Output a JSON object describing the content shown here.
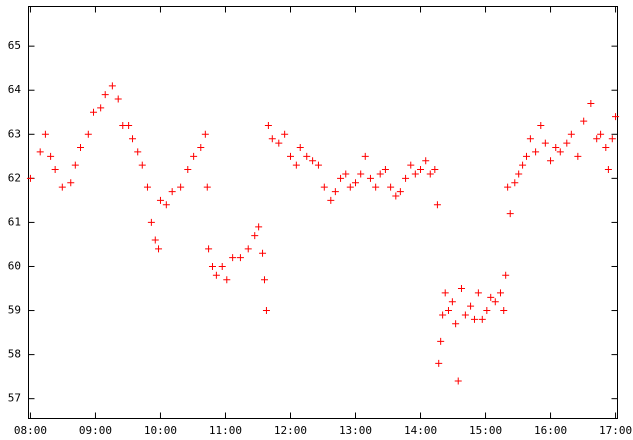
{
  "chart_data": {
    "type": "scatter",
    "color": "#ff0000",
    "x": [
      8.0,
      8.15,
      8.23,
      8.31,
      8.38,
      8.49,
      8.62,
      8.69,
      8.77,
      8.89,
      8.97,
      9.08,
      9.15,
      9.26,
      9.35,
      9.42,
      9.51,
      9.57,
      9.65,
      9.72,
      9.8,
      9.86,
      9.92,
      9.97,
      10.0,
      10.09,
      10.18,
      10.31,
      10.42,
      10.51,
      10.62,
      10.69,
      10.72,
      10.74,
      10.8,
      10.86,
      10.95,
      11.02,
      11.11,
      11.23,
      11.35,
      11.45,
      11.51,
      11.57,
      11.6,
      11.63,
      11.66,
      11.72,
      11.82,
      11.91,
      12.0,
      12.09,
      12.15,
      12.25,
      12.34,
      12.43,
      12.52,
      12.62,
      12.69,
      12.77,
      12.85,
      12.92,
      13.0,
      13.08,
      13.15,
      13.23,
      13.31,
      13.38,
      13.46,
      13.54,
      13.62,
      13.69,
      13.77,
      13.85,
      13.92,
      14.0,
      14.08,
      14.15,
      14.22,
      14.26,
      14.28,
      14.31,
      14.34,
      14.38,
      14.43,
      14.49,
      14.54,
      14.58,
      14.63,
      14.69,
      14.77,
      14.83,
      14.89,
      14.95,
      15.02,
      15.08,
      15.15,
      15.23,
      15.28,
      15.31,
      15.34,
      15.38,
      15.45,
      15.51,
      15.57,
      15.63,
      15.69,
      15.77,
      15.85,
      15.92,
      16.0,
      16.08,
      16.15,
      16.25,
      16.32,
      16.42,
      16.51,
      16.62,
      16.71,
      16.77,
      16.85,
      16.89,
      16.95,
      17.0
    ],
    "values": [
      62.0,
      62.6,
      63.0,
      62.5,
      62.2,
      61.8,
      61.9,
      62.3,
      62.7,
      63.0,
      63.5,
      63.6,
      63.9,
      64.1,
      63.8,
      63.2,
      63.2,
      62.9,
      62.6,
      62.3,
      61.8,
      61.0,
      60.6,
      60.4,
      61.5,
      61.4,
      61.7,
      61.8,
      62.2,
      62.5,
      62.7,
      63.0,
      61.8,
      60.4,
      60.0,
      59.8,
      60.0,
      59.7,
      60.2,
      60.2,
      60.4,
      60.7,
      60.9,
      60.3,
      59.7,
      59.0,
      63.2,
      62.9,
      62.8,
      63.0,
      62.5,
      62.3,
      62.7,
      62.5,
      62.4,
      62.3,
      61.8,
      61.5,
      61.7,
      62.0,
      62.1,
      61.8,
      61.9,
      62.1,
      62.5,
      62.0,
      61.8,
      62.1,
      62.2,
      61.8,
      61.6,
      61.7,
      62.0,
      62.3,
      62.1,
      62.2,
      62.4,
      62.1,
      62.2,
      61.4,
      57.8,
      58.3,
      58.9,
      59.4,
      59.0,
      59.2,
      58.7,
      57.4,
      59.5,
      58.9,
      59.1,
      58.8,
      59.4,
      58.8,
      59.0,
      59.3,
      59.2,
      59.4,
      59.0,
      59.8,
      61.8,
      61.2,
      61.9,
      62.1,
      62.3,
      62.5,
      62.9,
      62.6,
      63.2,
      62.8,
      62.4,
      62.7,
      62.6,
      62.8,
      63.0,
      62.5,
      63.3,
      63.7,
      62.9,
      63.0,
      62.7,
      62.2,
      62.9,
      63.4
    ],
    "xlim": [
      7.97,
      17.03
    ],
    "xticks": [
      {
        "value": 8,
        "label": "08:00"
      },
      {
        "value": 9,
        "label": "09:00"
      },
      {
        "value": 10,
        "label": "10:00"
      },
      {
        "value": 11,
        "label": "11:00"
      },
      {
        "value": 12,
        "label": "12:00"
      },
      {
        "value": 13,
        "label": "13:00"
      },
      {
        "value": 14,
        "label": "14:00"
      },
      {
        "value": 15,
        "label": "15:00"
      },
      {
        "value": 16,
        "label": "16:00"
      },
      {
        "value": 17,
        "label": "17:00"
      }
    ],
    "ylim": [
      56.55,
      65.9
    ],
    "yticks": [
      57,
      58,
      59,
      60,
      61,
      62,
      63,
      64,
      65
    ]
  }
}
